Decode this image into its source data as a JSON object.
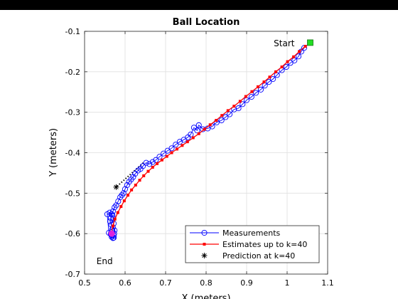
{
  "chart_data": {
    "type": "line",
    "title": "Ball Location",
    "xlabel": "X (meters)",
    "ylabel": "Y (meters)",
    "xlim": [
      0.5,
      1.1
    ],
    "ylim": [
      -0.7,
      -0.1
    ],
    "xticks": [
      "0.5",
      "0.6",
      "0.7",
      "0.8",
      "0.9",
      "1",
      "1.1"
    ],
    "yticks": [
      "-0.1",
      "-0.2",
      "-0.3",
      "-0.4",
      "-0.5",
      "-0.6",
      "-0.7"
    ],
    "grid": true,
    "legend_position": "bottom-right",
    "annotations": [
      {
        "label": "Start",
        "x": 1.057,
        "y": -0.128
      },
      {
        "label": "End",
        "x": 0.567,
        "y": -0.6
      }
    ],
    "series": [
      {
        "name": "Measurements",
        "color": "#0000ff",
        "marker": "circle",
        "x": [
          1.057,
          1.042,
          1.035,
          1.028,
          1.018,
          1.008,
          0.998,
          0.987,
          0.975,
          0.965,
          0.955,
          0.945,
          0.935,
          0.923,
          0.912,
          0.9,
          0.89,
          0.88,
          0.869,
          0.858,
          0.848,
          0.838,
          0.826,
          0.815,
          0.804,
          0.792,
          0.782,
          0.778,
          0.77,
          0.762,
          0.755,
          0.745,
          0.735,
          0.725,
          0.715,
          0.705,
          0.695,
          0.685,
          0.676,
          0.668,
          0.66,
          0.652,
          0.644,
          0.638,
          0.632,
          0.625,
          0.62,
          0.615,
          0.61,
          0.605,
          0.6,
          0.596,
          0.592,
          0.588,
          0.583,
          0.578,
          0.574,
          0.57,
          0.567,
          0.565,
          0.563,
          0.566,
          0.57,
          0.574,
          0.573,
          0.568,
          0.572,
          0.565,
          0.56,
          0.556,
          0.562,
          0.569,
          0.571,
          0.572,
          0.568,
          0.565,
          0.567,
          0.57,
          0.572,
          0.569
        ],
        "y": [
          -0.128,
          -0.141,
          -0.15,
          -0.162,
          -0.172,
          -0.178,
          -0.188,
          -0.196,
          -0.208,
          -0.218,
          -0.225,
          -0.234,
          -0.244,
          -0.252,
          -0.262,
          -0.27,
          -0.28,
          -0.29,
          -0.293,
          -0.305,
          -0.312,
          -0.32,
          -0.325,
          -0.335,
          -0.34,
          -0.342,
          -0.332,
          -0.345,
          -0.338,
          -0.355,
          -0.362,
          -0.368,
          -0.373,
          -0.38,
          -0.389,
          -0.395,
          -0.402,
          -0.41,
          -0.418,
          -0.423,
          -0.428,
          -0.425,
          -0.433,
          -0.44,
          -0.444,
          -0.452,
          -0.46,
          -0.466,
          -0.472,
          -0.48,
          -0.49,
          -0.5,
          -0.505,
          -0.51,
          -0.52,
          -0.53,
          -0.535,
          -0.545,
          -0.552,
          -0.562,
          -0.57,
          -0.578,
          -0.585,
          -0.592,
          -0.6,
          -0.605,
          -0.61,
          -0.602,
          -0.598,
          -0.552,
          -0.548,
          -0.555,
          -0.563,
          -0.575,
          -0.59,
          -0.6,
          -0.608,
          -0.611,
          -0.605,
          -0.594
        ]
      },
      {
        "name": "Estimates up to k=40",
        "color": "#ff0000",
        "marker": "square",
        "x": [
          1.045,
          1.03,
          1.016,
          1.001,
          0.987,
          0.972,
          0.957,
          0.943,
          0.928,
          0.913,
          0.898,
          0.884,
          0.869,
          0.854,
          0.839,
          0.825,
          0.81,
          0.796,
          0.782,
          0.768,
          0.754,
          0.741,
          0.728,
          0.715,
          0.703,
          0.691,
          0.679,
          0.668,
          0.657,
          0.646,
          0.636,
          0.626,
          0.616,
          0.607,
          0.598,
          0.59,
          0.582,
          0.575,
          0.57,
          0.566
        ],
        "y": [
          -0.137,
          -0.15,
          -0.163,
          -0.175,
          -0.188,
          -0.2,
          -0.213,
          -0.225,
          -0.237,
          -0.249,
          -0.261,
          -0.273,
          -0.285,
          -0.296,
          -0.308,
          -0.32,
          -0.331,
          -0.342,
          -0.353,
          -0.363,
          -0.373,
          -0.382,
          -0.391,
          -0.4,
          -0.409,
          -0.418,
          -0.427,
          -0.436,
          -0.446,
          -0.457,
          -0.468,
          -0.48,
          -0.492,
          -0.505,
          -0.519,
          -0.533,
          -0.548,
          -0.564,
          -0.581,
          -0.598
        ]
      },
      {
        "name": "Prediction at k=40",
        "color": "#000000",
        "marker": "asterisk",
        "x": [
          0.578
        ],
        "y": [
          -0.485
        ]
      }
    ]
  }
}
